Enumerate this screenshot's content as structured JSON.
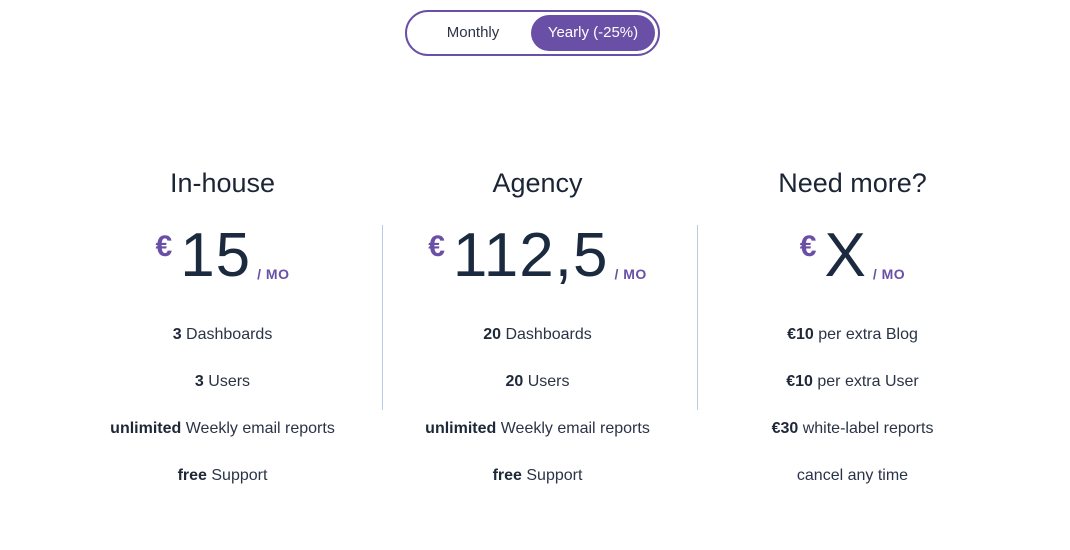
{
  "billing_toggle": {
    "monthly_label": "Monthly",
    "yearly_label": "Yearly (-25%)",
    "selected": "yearly",
    "accent_color": "#6a4fa6"
  },
  "plans": [
    {
      "name": "In-house",
      "currency": "€",
      "amount": "15",
      "period": "/ MO",
      "features": [
        {
          "bold": "3",
          "text": " Dashboards"
        },
        {
          "bold": "3",
          "text": " Users"
        },
        {
          "bold": "unlimited",
          "text": " Weekly email reports"
        },
        {
          "bold": "free",
          "text": " Support"
        }
      ]
    },
    {
      "name": "Agency",
      "currency": "€",
      "amount": "112,5",
      "period": "/ MO",
      "features": [
        {
          "bold": "20",
          "text": " Dashboards"
        },
        {
          "bold": "20",
          "text": " Users"
        },
        {
          "bold": "unlimited",
          "text": " Weekly email reports"
        },
        {
          "bold": "free",
          "text": " Support"
        }
      ]
    },
    {
      "name": "Need more?",
      "currency": "€",
      "amount": "X",
      "period": "/ MO",
      "features": [
        {
          "bold": "€10",
          "text": " per extra Blog"
        },
        {
          "bold": "€10",
          "text": " per extra User"
        },
        {
          "bold": "€30",
          "text": " white-label reports"
        },
        {
          "bold": "",
          "text": "cancel any time"
        }
      ]
    }
  ]
}
